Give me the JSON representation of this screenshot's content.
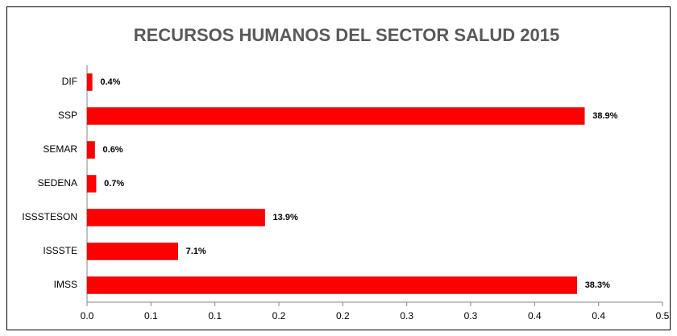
{
  "chart_data": {
    "type": "bar",
    "orientation": "horizontal",
    "title": "RECURSOS HUMANOS DEL SECTOR SALUD 2015",
    "categories": [
      "DIF",
      "SSP",
      "SEMAR",
      "SEDENA",
      "ISSSTESON",
      "ISSSTE",
      "IMSS"
    ],
    "values": [
      0.004,
      0.389,
      0.006,
      0.007,
      0.139,
      0.071,
      0.383
    ],
    "value_labels": [
      "0.4%",
      "38.9%",
      "0.6%",
      "0.7%",
      "13.9%",
      "7.1%",
      "38.3%"
    ],
    "color": "#ff0000",
    "xlim": [
      0,
      0.45
    ],
    "xticks": [
      {
        "value": 0,
        "label": "0.0"
      },
      {
        "value": 0.05,
        "label": "0.1"
      },
      0.1,
      {
        "value": 0.15,
        "label": "0.2"
      },
      0.2,
      {
        "value": 0.25,
        "label": "0.3"
      },
      0.3,
      {
        "value": 0.35,
        "label": "0.4"
      },
      0.4,
      {
        "value": 0.45,
        "label": "0.5"
      }
    ],
    "grid": false
  }
}
